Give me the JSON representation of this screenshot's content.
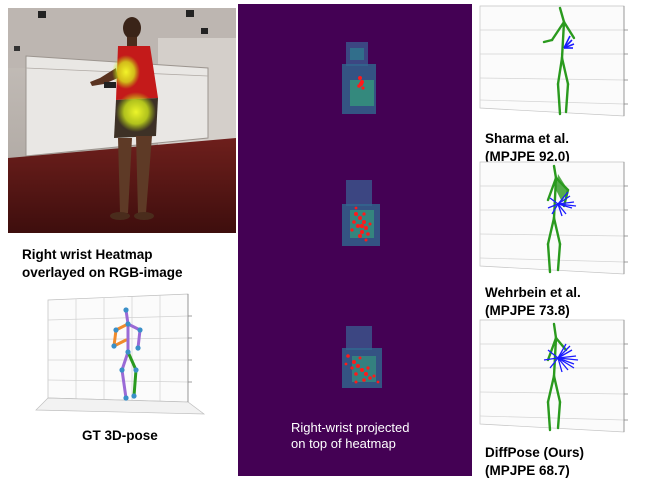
{
  "figure": {
    "rgb_panel": {
      "caption_line1": "Right wrist Heatmap",
      "caption_line2": "overlayed on RGB-image"
    },
    "gt_panel": {
      "caption": "GT 3D-pose"
    },
    "heatmap_panel": {
      "caption_line1": "Right-wrist projected",
      "caption_line2": "on top of heatmap",
      "background_color": "#440154"
    },
    "methods": [
      {
        "name": "Sharma et al.",
        "metric": "(MPJPE 92.0)",
        "mpjpe": 92.0
      },
      {
        "name": "Wehrbein et al.",
        "metric": "(MPJPE 73.8)",
        "mpjpe": 73.8
      },
      {
        "name": "DiffPose (Ours)",
        "metric": "(MPJPE 68.7)",
        "mpjpe": 68.7
      }
    ],
    "colors": {
      "skeleton_green": "#2a9a1e",
      "hypothesis_blue": "#1a1aff",
      "projection_red": "#ff1a1a",
      "gt_orange": "#f08a2c",
      "gt_purple": "#9a6ad6",
      "gt_joint": "#3a8fc8"
    }
  }
}
